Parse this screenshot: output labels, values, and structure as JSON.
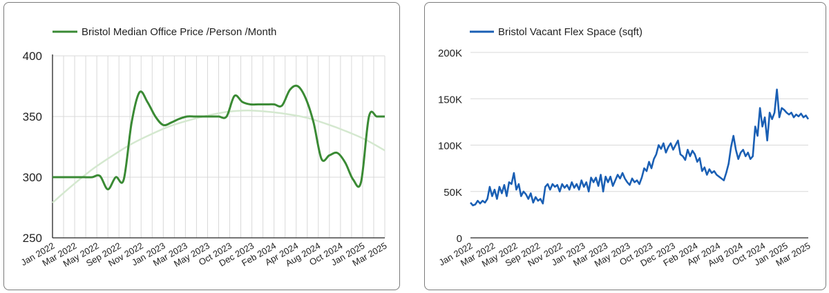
{
  "chart_data": [
    {
      "type": "line",
      "legend": "Bristol Median Office Price /Person /Month",
      "legend_position": "top-left",
      "grid": true,
      "ylim": [
        250,
        400
      ],
      "yticks": [
        "400",
        "350",
        "300",
        "250"
      ],
      "xticks": [
        "Jan 2022",
        "Mar 2022",
        "May 2022",
        "Sep 2022",
        "Nov 2022",
        "Jan 2023",
        "Mar 2023",
        "May 2023",
        "Oct 2023",
        "Dec 2023",
        "Feb 2024",
        "Apr 2024",
        "Aug 2024",
        "Oct 2024",
        "Jan 2025",
        "Mar 2025"
      ],
      "colors": {
        "series": "#3a8a34",
        "trend": "#d4e8cf",
        "grid": "#d8d8d8"
      },
      "series": [
        {
          "values": [
            300,
            300,
            300,
            300,
            300,
            300,
            301,
            290,
            300,
            298,
            345,
            370,
            362,
            350,
            343,
            345,
            348,
            350,
            350,
            350,
            350,
            350,
            350,
            367,
            362,
            360,
            360,
            360,
            360,
            359,
            372,
            375,
            365,
            345,
            315,
            318,
            320,
            312,
            298,
            296,
            350,
            350,
            350
          ]
        }
      ],
      "trendline": [
        279,
        293,
        306,
        317,
        327,
        335,
        342,
        347,
        351,
        354,
        355,
        354,
        352,
        349,
        344,
        338,
        331,
        322
      ]
    },
    {
      "type": "line",
      "legend": "Bristol Vacant Flex Space (sqft)",
      "legend_position": "top-left",
      "grid": true,
      "ylim": [
        0,
        200000
      ],
      "yticks": [
        "200K",
        "150K",
        "100K",
        "50K",
        "0"
      ],
      "xticks": [
        "Jan 2022",
        "Mar 2022",
        "May 2022",
        "Sep 2022",
        "Nov 2022",
        "Jan 2023",
        "Mar 2023",
        "May 2023",
        "Oct 2023",
        "Dec 2023",
        "Feb 2024",
        "Apr 2024",
        "Aug 2024",
        "Oct 2024",
        "Jan 2025",
        "Mar 2025"
      ],
      "colors": {
        "series": "#1a5fb4",
        "grid": "#d8d8d8"
      },
      "series": [
        {
          "values": [
            38000,
            35000,
            36000,
            40000,
            37000,
            40000,
            38000,
            42000,
            55000,
            45000,
            52000,
            42000,
            55000,
            48000,
            57000,
            45000,
            60000,
            58000,
            70000,
            52000,
            58000,
            45000,
            50000,
            47000,
            42000,
            48000,
            38000,
            44000,
            40000,
            42000,
            37000,
            55000,
            58000,
            52000,
            58000,
            55000,
            57000,
            50000,
            58000,
            54000,
            57000,
            52000,
            60000,
            54000,
            58000,
            52000,
            62000,
            55000,
            60000,
            50000,
            65000,
            60000,
            65000,
            56000,
            68000,
            50000,
            66000,
            60000,
            66000,
            56000,
            62000,
            68000,
            64000,
            70000,
            64000,
            60000,
            57000,
            64000,
            60000,
            62000,
            58000,
            65000,
            75000,
            72000,
            82000,
            75000,
            85000,
            90000,
            100000,
            96000,
            102000,
            92000,
            98000,
            102000,
            95000,
            100000,
            105000,
            90000,
            88000,
            84000,
            95000,
            88000,
            94000,
            90000,
            82000,
            86000,
            72000,
            76000,
            68000,
            74000,
            70000,
            72000,
            68000,
            66000,
            64000,
            62000,
            70000,
            80000,
            98000,
            110000,
            95000,
            85000,
            92000,
            95000,
            88000,
            92000,
            85000,
            88000,
            120000,
            110000,
            140000,
            120000,
            130000,
            105000,
            135000,
            128000,
            135000,
            160000,
            130000,
            140000,
            138000,
            135000,
            133000,
            135000,
            130000,
            133000,
            131000,
            134000,
            130000,
            132000,
            128000
          ]
        }
      ]
    }
  ]
}
